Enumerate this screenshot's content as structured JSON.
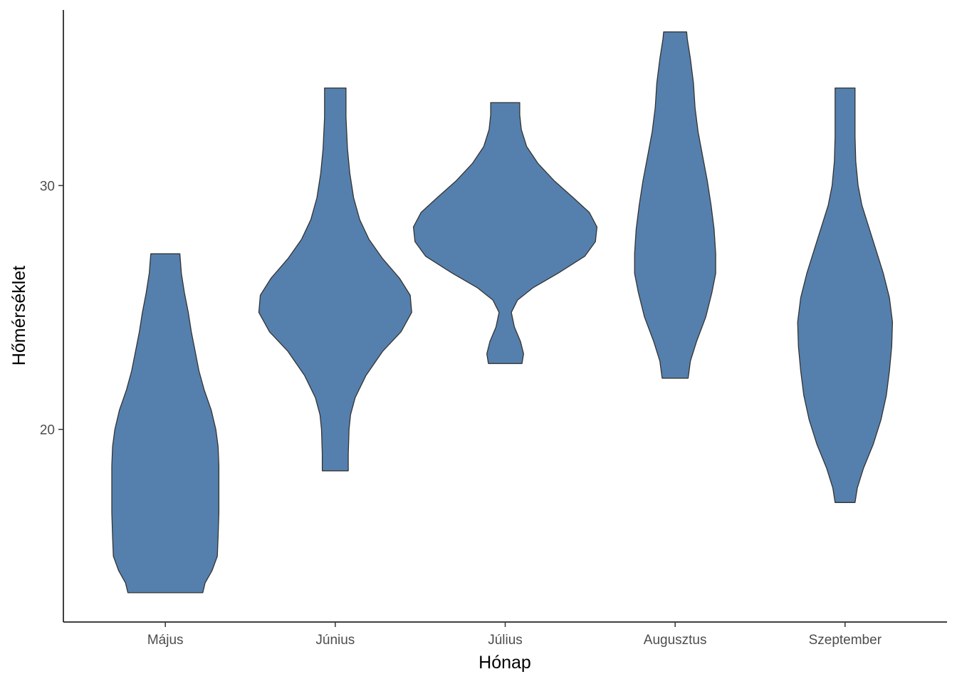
{
  "chart_data": {
    "type": "violin",
    "title": "",
    "xlabel": "Hónap",
    "ylabel": "Hőmérséklet",
    "categories": [
      "Május",
      "Június",
      "Július",
      "Augusztus",
      "Szeptember"
    ],
    "ylim": [
      12.1,
      37.2
    ],
    "yticks": [
      20,
      30
    ],
    "grid": false,
    "legend": "none",
    "fill_color": "#5580AD",
    "outline_color": "#333333",
    "series": [
      {
        "category": "Május",
        "min": 13.3,
        "max": 27.2,
        "profile": [
          [
            13.3,
            0.49
          ],
          [
            13.7,
            0.52
          ],
          [
            14.2,
            0.61
          ],
          [
            14.8,
            0.68
          ],
          [
            15.6,
            0.69
          ],
          [
            16.6,
            0.7
          ],
          [
            17.6,
            0.7
          ],
          [
            18.5,
            0.7
          ],
          [
            19.3,
            0.69
          ],
          [
            20.0,
            0.66
          ],
          [
            20.8,
            0.6
          ],
          [
            21.6,
            0.51
          ],
          [
            22.4,
            0.44
          ],
          [
            23.2,
            0.39
          ],
          [
            24.0,
            0.34
          ],
          [
            24.8,
            0.3
          ],
          [
            25.6,
            0.25
          ],
          [
            26.4,
            0.21
          ],
          [
            27.2,
            0.19
          ]
        ]
      },
      {
        "category": "Június",
        "min": 18.3,
        "max": 34.0,
        "profile": [
          [
            18.3,
            0.17
          ],
          [
            19.0,
            0.17
          ],
          [
            20.0,
            0.18
          ],
          [
            20.6,
            0.2
          ],
          [
            21.3,
            0.26
          ],
          [
            22.2,
            0.4
          ],
          [
            23.2,
            0.62
          ],
          [
            24.0,
            0.86
          ],
          [
            24.8,
            1.0
          ],
          [
            25.5,
            0.98
          ],
          [
            26.2,
            0.84
          ],
          [
            27.0,
            0.62
          ],
          [
            27.8,
            0.44
          ],
          [
            28.6,
            0.32
          ],
          [
            29.5,
            0.24
          ],
          [
            30.5,
            0.19
          ],
          [
            31.5,
            0.16
          ],
          [
            32.8,
            0.14
          ],
          [
            34.0,
            0.14
          ]
        ]
      },
      {
        "category": "Július",
        "min": 22.7,
        "max": 33.4,
        "profile": [
          [
            22.7,
            0.22
          ],
          [
            23.1,
            0.24
          ],
          [
            23.6,
            0.2
          ],
          [
            24.2,
            0.12
          ],
          [
            24.8,
            0.08
          ],
          [
            25.3,
            0.16
          ],
          [
            25.8,
            0.36
          ],
          [
            26.4,
            0.69
          ],
          [
            27.1,
            1.04
          ],
          [
            27.7,
            1.18
          ],
          [
            28.3,
            1.2
          ],
          [
            28.9,
            1.1
          ],
          [
            29.5,
            0.89
          ],
          [
            30.2,
            0.64
          ],
          [
            30.9,
            0.43
          ],
          [
            31.6,
            0.28
          ],
          [
            32.3,
            0.21
          ],
          [
            32.9,
            0.19
          ],
          [
            33.4,
            0.19
          ]
        ]
      },
      {
        "category": "Augusztus",
        "min": 22.1,
        "max": 36.3,
        "profile": [
          [
            22.1,
            0.17
          ],
          [
            22.8,
            0.2
          ],
          [
            23.6,
            0.28
          ],
          [
            24.6,
            0.4
          ],
          [
            25.6,
            0.48
          ],
          [
            26.4,
            0.53
          ],
          [
            27.2,
            0.53
          ],
          [
            28.2,
            0.51
          ],
          [
            29.2,
            0.47
          ],
          [
            30.2,
            0.42
          ],
          [
            31.2,
            0.36
          ],
          [
            32.2,
            0.3
          ],
          [
            33.2,
            0.26
          ],
          [
            34.2,
            0.24
          ],
          [
            35.2,
            0.2
          ],
          [
            36.0,
            0.16
          ],
          [
            36.3,
            0.15
          ]
        ]
      },
      {
        "category": "Szeptember",
        "min": 17.0,
        "max": 34.0,
        "profile": [
          [
            17.0,
            0.13
          ],
          [
            17.6,
            0.16
          ],
          [
            18.4,
            0.24
          ],
          [
            19.4,
            0.37
          ],
          [
            20.4,
            0.47
          ],
          [
            21.4,
            0.54
          ],
          [
            22.4,
            0.58
          ],
          [
            23.4,
            0.61
          ],
          [
            24.4,
            0.62
          ],
          [
            25.4,
            0.58
          ],
          [
            26.4,
            0.5
          ],
          [
            27.4,
            0.4
          ],
          [
            28.4,
            0.3
          ],
          [
            29.2,
            0.22
          ],
          [
            30.0,
            0.17
          ],
          [
            31.0,
            0.14
          ],
          [
            32.0,
            0.13
          ],
          [
            33.0,
            0.13
          ],
          [
            34.0,
            0.13
          ]
        ]
      }
    ]
  }
}
